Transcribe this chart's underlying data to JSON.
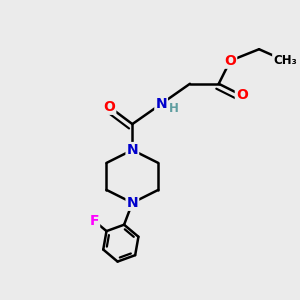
{
  "bg_color": "#ebebeb",
  "atom_colors": {
    "C": "#000000",
    "N": "#0000cc",
    "O": "#ff0000",
    "F": "#ff00ff",
    "H": "#5f9ea0"
  },
  "bond_color": "#000000",
  "bond_width": 1.8
}
